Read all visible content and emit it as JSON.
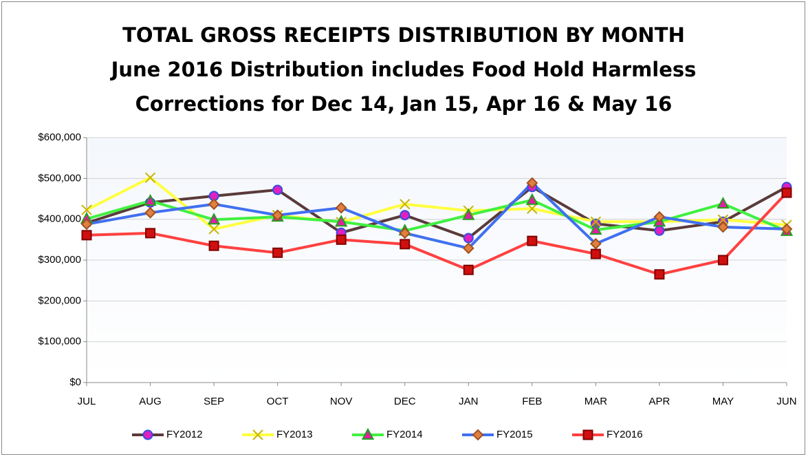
{
  "chart_data": {
    "type": "line",
    "title": [
      "TOTAL GROSS RECEIPTS DISTRIBUTION BY MONTH",
      "June 2016 Distribution includes Food Hold Harmless",
      "Corrections for Dec 14, Jan 15, Apr 16 & May 16"
    ],
    "categories": [
      "JUL",
      "AUG",
      "SEP",
      "OCT",
      "NOV",
      "DEC",
      "JAN",
      "FEB",
      "MAR",
      "APR",
      "MAY",
      "JUN"
    ],
    "ylim": [
      0,
      600000
    ],
    "yticks": [
      {
        "value": 0,
        "label": "$0"
      },
      {
        "value": 100000,
        "label": "$100,000"
      },
      {
        "value": 200000,
        "label": "$200,000"
      },
      {
        "value": 300000,
        "label": "$300,000"
      },
      {
        "value": 400000,
        "label": "$400,000"
      },
      {
        "value": 500000,
        "label": "$500,000"
      },
      {
        "value": 600000,
        "label": "$600,000"
      }
    ],
    "grid": true,
    "legend": "bottom",
    "series": [
      {
        "name": "FY2012",
        "color": "#5a3a3a",
        "marker": "circle",
        "marker_fill": "#e020c0",
        "marker_stroke": "#3050e0",
        "values": [
          391000,
          441000,
          457000,
          472000,
          367000,
          410000,
          354000,
          479000,
          389000,
          372000,
          394000,
          479000
        ]
      },
      {
        "name": "FY2013",
        "color": "#ffff40",
        "marker": "x",
        "marker_fill": "#ffff40",
        "marker_stroke": "#c8b400",
        "values": [
          423000,
          502000,
          376000,
          410000,
          393000,
          437000,
          421000,
          426000,
          394000,
          394000,
          399000,
          386000
        ]
      },
      {
        "name": "FY2014",
        "color": "#40f040",
        "marker": "triangle",
        "marker_fill": "#e020a0",
        "marker_stroke": "#20a020",
        "values": [
          401000,
          445000,
          399000,
          406000,
          394000,
          372000,
          410000,
          447000,
          374000,
          394000,
          438000,
          371000
        ]
      },
      {
        "name": "FY2015",
        "color": "#4070f0",
        "marker": "diamond",
        "marker_fill": "#e08040",
        "marker_stroke": "#a05020",
        "values": [
          388000,
          416000,
          437000,
          410000,
          428000,
          366000,
          329000,
          489000,
          340000,
          406000,
          381000,
          376000
        ]
      },
      {
        "name": "FY2016",
        "color": "#ff4040",
        "marker": "square",
        "marker_fill": "#d01010",
        "marker_stroke": "#800000",
        "values": [
          361000,
          366000,
          335000,
          318000,
          350000,
          339000,
          276000,
          347000,
          315000,
          265000,
          300000,
          465000
        ]
      }
    ]
  }
}
